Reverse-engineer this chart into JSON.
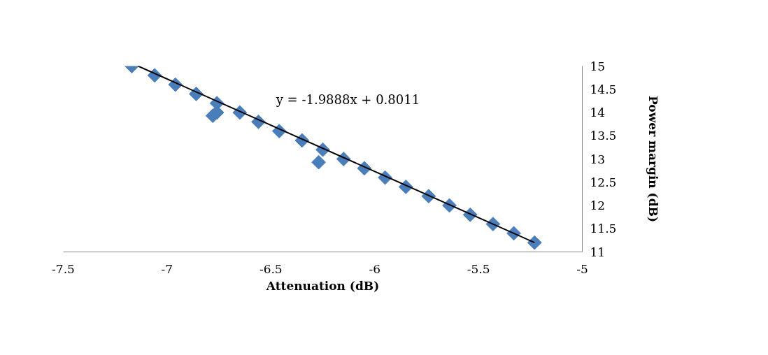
{
  "chart_data": {
    "type": "scatter",
    "xlabel": "Attenuation (dB)",
    "ylabel": "Power margin (dB)",
    "xlim": [
      -7.5,
      -5
    ],
    "xticks": [
      -7.5,
      -7,
      -6.5,
      -6,
      -5.5,
      -5
    ],
    "ylim": [
      11,
      15
    ],
    "yticks": [
      11,
      11.5,
      12,
      12.5,
      13,
      13.5,
      14,
      14.5,
      15
    ],
    "grid": false,
    "marker": "diamond",
    "annotations": [
      "y = -1.9888x + 0.8011"
    ],
    "series": [
      {
        "color": "#4a7ebb",
        "x": [
          -7.17,
          -7.06,
          -6.96,
          -6.86,
          -6.76,
          -6.78,
          -6.76,
          -6.65,
          -6.56,
          -6.46,
          -6.35,
          -6.25,
          -6.27,
          -6.15,
          -6.05,
          -5.95,
          -5.85,
          -5.74,
          -5.64,
          -5.54,
          -5.43,
          -5.33,
          -5.23
        ],
        "values": [
          15.0,
          14.8,
          14.6,
          14.4,
          14.2,
          13.93,
          14.0,
          14.0,
          13.8,
          13.6,
          13.4,
          13.2,
          12.93,
          13.0,
          12.8,
          12.6,
          12.4,
          12.2,
          12.0,
          11.8,
          11.6,
          11.4,
          11.2
        ]
      },
      {
        "type": "line",
        "marker": "none",
        "color": "#000000",
        "x": [
          -7.14,
          -5.23
        ],
        "values": [
          15.0,
          11.2
        ]
      }
    ]
  }
}
